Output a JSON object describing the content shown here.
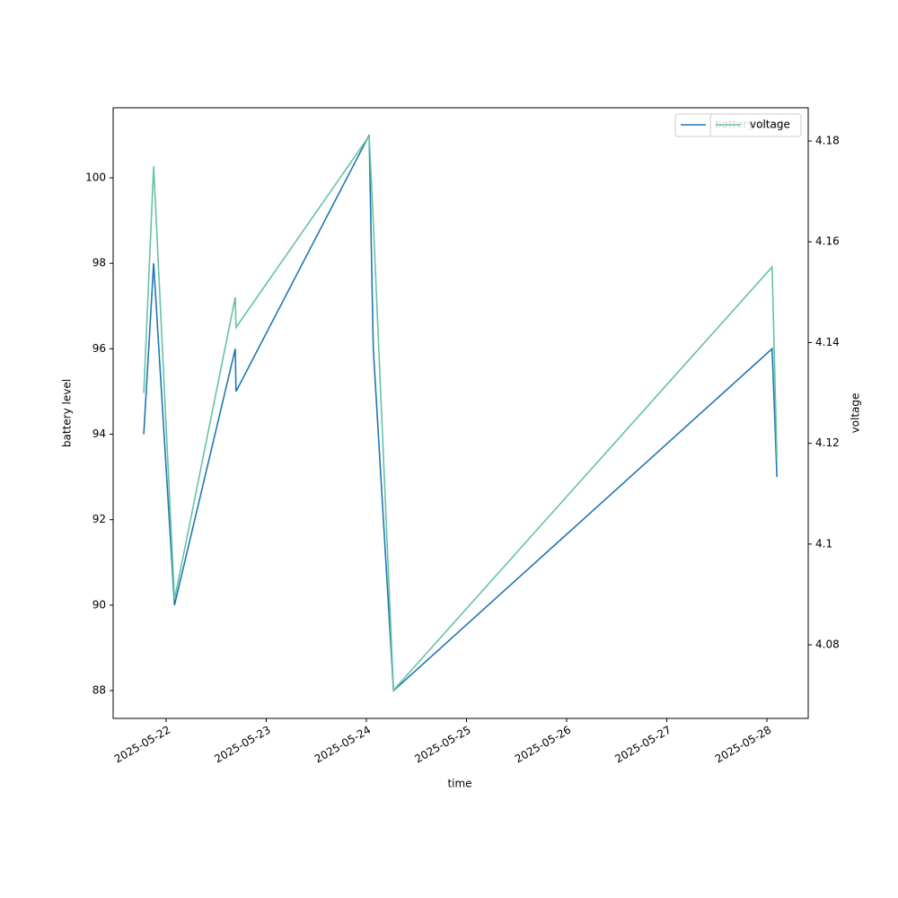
{
  "chart_data": {
    "type": "line",
    "x_label": "time",
    "y_label": "battery level",
    "y2_label": "voltage",
    "x": [
      "2025-05-21T18:38",
      "2025-05-21T21:00",
      "2025-05-22T02:00",
      "2025-05-22T16:35",
      "2025-05-22T16:45",
      "2025-05-24T00:40",
      "2025-05-24T01:40",
      "2025-05-24T06:30",
      "2025-05-28T01:15",
      "2025-05-28T02:25"
    ],
    "series": [
      {
        "name": "battery level",
        "color": "#1f77b4",
        "values": [
          94,
          98,
          90,
          96,
          95,
          101,
          96,
          88,
          96,
          93
        ]
      },
      {
        "name": "voltage",
        "color": "#66c2a5",
        "axis": "y2",
        "values": [
          4.13,
          4.175,
          4.089,
          4.149,
          4.143,
          4.181,
          4.164,
          4.071,
          4.155,
          4.117
        ]
      }
    ],
    "xlim": [
      "2025-05-21T11:18",
      "2025-05-28T09:54"
    ],
    "xticks": [
      "2025-05-22",
      "2025-05-23",
      "2025-05-24",
      "2025-05-25",
      "2025-05-26",
      "2025-05-27",
      "2025-05-28"
    ],
    "ylim": [
      87.35,
      101.64
    ],
    "yticks": [
      88,
      90,
      92,
      94,
      96,
      98,
      100
    ],
    "y2lim": [
      4.0654,
      4.1866
    ],
    "y2ticks": [
      4.08,
      4.1,
      4.12,
      4.14,
      4.16,
      4.18
    ]
  }
}
